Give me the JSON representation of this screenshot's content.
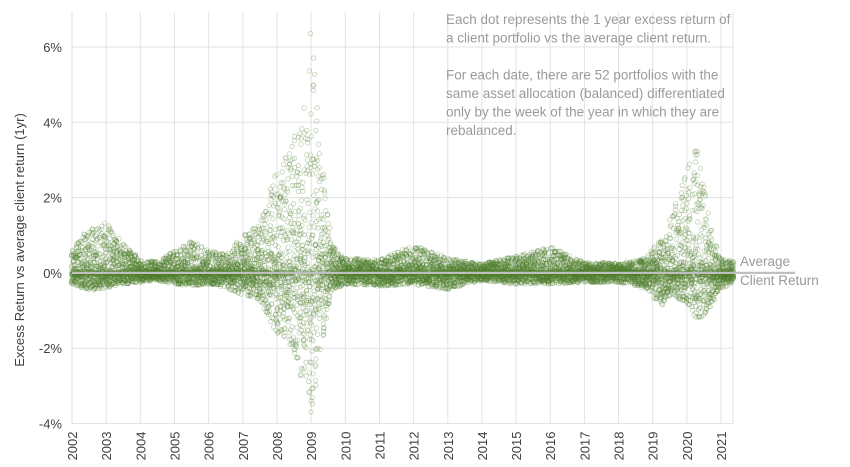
{
  "chart_data": {
    "type": "scatter",
    "title": "",
    "ylabel": "Excess Return vs average client return (1yr)",
    "xlabel": "",
    "x_range": [
      2002.0,
      2021.35
    ],
    "ylim": [
      -4,
      7
    ],
    "y_ticks": [
      {
        "value": 6,
        "label": "6%"
      },
      {
        "value": 4,
        "label": "4%"
      },
      {
        "value": 2,
        "label": "2%"
      },
      {
        "value": 0,
        "label": "0%"
      },
      {
        "value": -2,
        "label": "-2%"
      },
      {
        "value": -4,
        "label": "-4%"
      }
    ],
    "x_ticks": [
      "2002",
      "2003",
      "2004",
      "2005",
      "2006",
      "2007",
      "2008",
      "2009",
      "2010",
      "2011",
      "2012",
      "2013",
      "2014",
      "2015",
      "2016",
      "2017",
      "2018",
      "2019",
      "2020",
      "2021"
    ],
    "grid": {
      "vertical": true,
      "horizontal": true
    },
    "point_color": "#4e7f2c",
    "average_line_color": "#bfbfbf",
    "series": [
      {
        "points_per_date": 52,
        "spread_envelope": [
          {
            "x": 2002.0,
            "upper": 0.6,
            "lower": -0.3
          },
          {
            "x": 2002.5,
            "upper": 1.2,
            "lower": -0.5
          },
          {
            "x": 2003.0,
            "upper": 1.35,
            "lower": -0.4
          },
          {
            "x": 2003.5,
            "upper": 0.8,
            "lower": -0.3
          },
          {
            "x": 2004.0,
            "upper": 0.35,
            "lower": -0.25
          },
          {
            "x": 2004.5,
            "upper": 0.3,
            "lower": -0.2
          },
          {
            "x": 2005.0,
            "upper": 0.6,
            "lower": -0.3
          },
          {
            "x": 2005.5,
            "upper": 0.85,
            "lower": -0.35
          },
          {
            "x": 2006.0,
            "upper": 0.6,
            "lower": -0.3
          },
          {
            "x": 2006.5,
            "upper": 0.5,
            "lower": -0.4
          },
          {
            "x": 2007.0,
            "upper": 1.0,
            "lower": -0.6
          },
          {
            "x": 2007.5,
            "upper": 1.3,
            "lower": -0.7
          },
          {
            "x": 2007.9,
            "upper": 2.5,
            "lower": -1.5
          },
          {
            "x": 2008.3,
            "upper": 3.2,
            "lower": -1.9
          },
          {
            "x": 2008.8,
            "upper": 4.3,
            "lower": -3.0
          },
          {
            "x": 2009.0,
            "upper": 6.8,
            "lower": -3.9
          },
          {
            "x": 2009.3,
            "upper": 3.0,
            "lower": -2.0
          },
          {
            "x": 2009.6,
            "upper": 0.8,
            "lower": -0.5
          },
          {
            "x": 2010.0,
            "upper": 0.4,
            "lower": -0.3
          },
          {
            "x": 2011.0,
            "upper": 0.35,
            "lower": -0.35
          },
          {
            "x": 2012.0,
            "upper": 0.75,
            "lower": -0.3
          },
          {
            "x": 2013.0,
            "upper": 0.4,
            "lower": -0.45
          },
          {
            "x": 2014.0,
            "upper": 0.25,
            "lower": -0.2
          },
          {
            "x": 2015.0,
            "upper": 0.45,
            "lower": -0.3
          },
          {
            "x": 2016.0,
            "upper": 0.7,
            "lower": -0.3
          },
          {
            "x": 2017.0,
            "upper": 0.3,
            "lower": -0.25
          },
          {
            "x": 2018.0,
            "upper": 0.25,
            "lower": -0.25
          },
          {
            "x": 2018.8,
            "upper": 0.4,
            "lower": -0.4
          },
          {
            "x": 2019.2,
            "upper": 0.9,
            "lower": -0.9
          },
          {
            "x": 2019.6,
            "upper": 1.6,
            "lower": -0.6
          },
          {
            "x": 2020.0,
            "upper": 2.8,
            "lower": -0.8
          },
          {
            "x": 2020.3,
            "upper": 3.5,
            "lower": -1.35
          },
          {
            "x": 2020.7,
            "upper": 1.2,
            "lower": -0.9
          },
          {
            "x": 2021.0,
            "upper": 0.4,
            "lower": -0.4
          },
          {
            "x": 2021.35,
            "upper": 0.3,
            "lower": -0.3
          }
        ]
      }
    ],
    "average_line": {
      "y": 0,
      "label_line1": "Average",
      "label_line2": "Client Return"
    },
    "annotation": {
      "lines": [
        "Each dot represents the 1 year excess return of",
        "a client portfolio vs the average client return.",
        "",
        "For each date, there are 52 portfolios with the",
        "same asset allocation (balanced) differentiated",
        "only by the week of the year in which they are",
        "rebalanced."
      ]
    }
  }
}
